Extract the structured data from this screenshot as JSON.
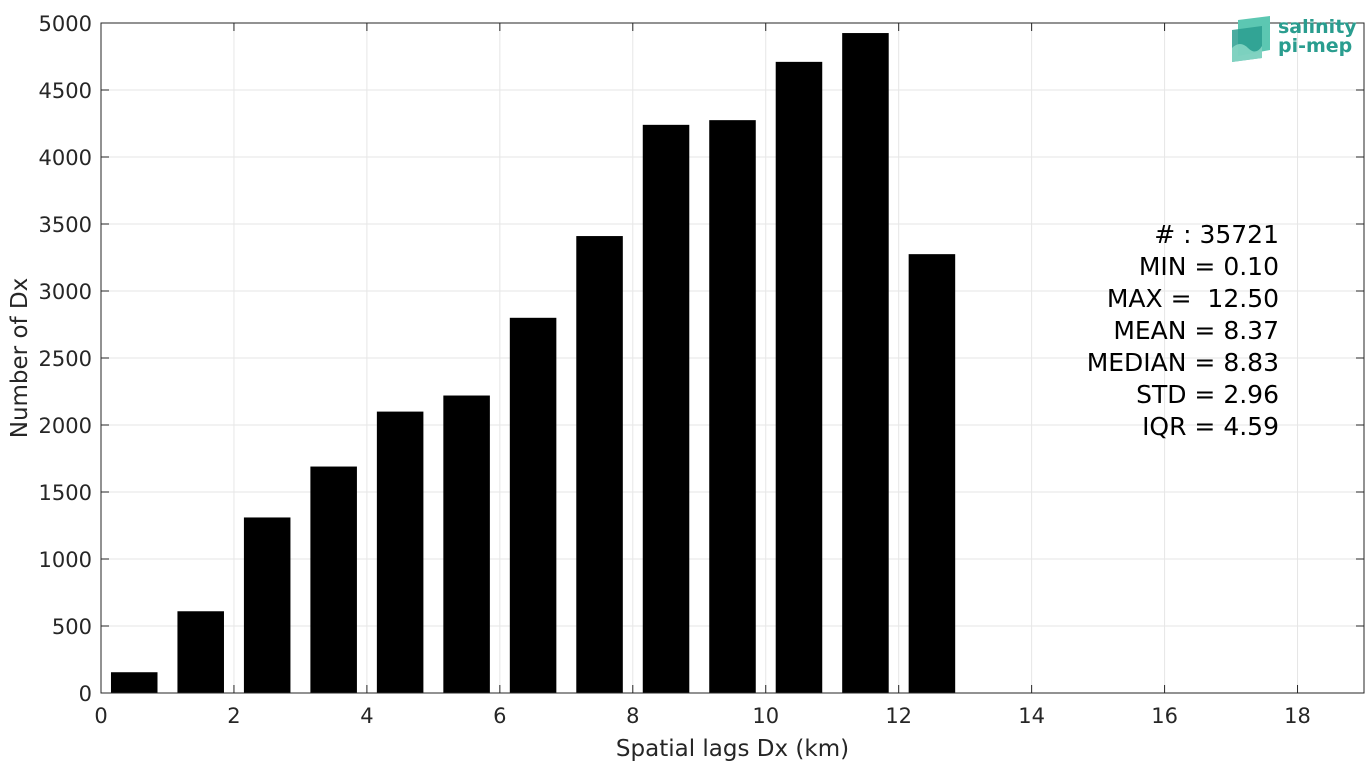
{
  "chart_data": {
    "type": "bar",
    "x": [
      0.5,
      1.5,
      2.5,
      3.5,
      4.5,
      5.5,
      6.5,
      7.5,
      8.5,
      9.5,
      10.5,
      11.5,
      12.5
    ],
    "values": [
      155,
      610,
      1310,
      1690,
      2100,
      2220,
      2800,
      3410,
      4240,
      4275,
      4710,
      4925,
      3275
    ],
    "bar_width": 0.7,
    "xlabel": "Spatial lags Dx (km)",
    "ylabel": "Number of Dx",
    "xlim": [
      0,
      19
    ],
    "ylim": [
      0,
      5000
    ],
    "xticks": [
      0,
      2,
      4,
      6,
      8,
      10,
      12,
      14,
      16,
      18
    ],
    "yticks": [
      0,
      500,
      1000,
      1500,
      2000,
      2500,
      3000,
      3500,
      4000,
      4500,
      5000
    ],
    "grid": true,
    "bar_color": "#000000",
    "stats_lines": [
      "# : 35721",
      "MIN = 0.10",
      "MAX =  12.50",
      "MEAN = 8.37",
      "MEDIAN = 8.83",
      "STD = 2.96",
      "IQR = 4.59"
    ]
  },
  "logo": {
    "line1": "salinity",
    "line2": "pi-mep",
    "color": "#2a9d8f"
  }
}
